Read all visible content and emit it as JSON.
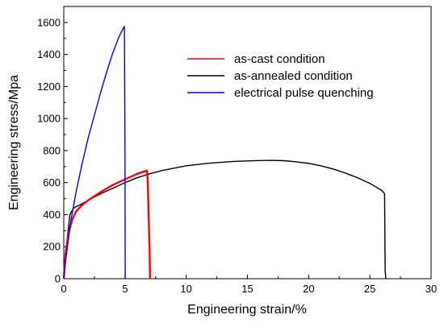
{
  "chart_data": {
    "type": "line",
    "xlabel": "Engineering strain/%",
    "ylabel": "Engineering stress/Mpa",
    "xlim": [
      0,
      30
    ],
    "ylim": [
      0,
      1700
    ],
    "x_ticks": [
      0,
      5,
      10,
      15,
      20,
      25,
      30
    ],
    "y_ticks": [
      0,
      200,
      400,
      600,
      800,
      1000,
      1200,
      1400,
      1600
    ],
    "grid": false,
    "legend_position": "top-right",
    "series": [
      {
        "name": "as-cast condition",
        "color": "#ff0000",
        "points": [
          [
            0,
            0
          ],
          [
            0.15,
            160
          ],
          [
            0.4,
            290
          ],
          [
            0.7,
            370
          ],
          [
            1.0,
            420
          ],
          [
            1.5,
            460
          ],
          [
            2.0,
            490
          ],
          [
            3.0,
            540
          ],
          [
            4.0,
            585
          ],
          [
            5.0,
            620
          ],
          [
            6.0,
            655
          ],
          [
            6.8,
            675
          ],
          [
            6.85,
            620
          ],
          [
            7.0,
            200
          ],
          [
            7.05,
            0
          ]
        ]
      },
      {
        "name": "as-annealed condition",
        "color": "#000000",
        "points": [
          [
            0,
            0
          ],
          [
            0.3,
            260
          ],
          [
            0.5,
            400
          ],
          [
            0.8,
            440
          ],
          [
            1.0,
            450
          ],
          [
            1.3,
            460
          ],
          [
            2,
            490
          ],
          [
            3,
            530
          ],
          [
            4,
            565
          ],
          [
            5,
            600
          ],
          [
            6,
            630
          ],
          [
            7,
            655
          ],
          [
            8,
            675
          ],
          [
            9,
            690
          ],
          [
            10,
            705
          ],
          [
            12,
            722
          ],
          [
            14,
            733
          ],
          [
            16,
            738
          ],
          [
            17,
            739
          ],
          [
            18,
            737
          ],
          [
            19,
            730
          ],
          [
            20,
            720
          ],
          [
            21,
            705
          ],
          [
            22,
            685
          ],
          [
            23,
            660
          ],
          [
            24,
            630
          ],
          [
            25,
            595
          ],
          [
            26,
            550
          ],
          [
            26.2,
            530
          ],
          [
            26.25,
            50
          ],
          [
            26.3,
            0
          ]
        ]
      },
      {
        "name": "electrical pulse quenching",
        "color": "#0000ff",
        "points": [
          [
            0,
            0
          ],
          [
            0.1,
            80
          ],
          [
            0.3,
            200
          ],
          [
            0.6,
            370
          ],
          [
            1.0,
            540
          ],
          [
            1.5,
            720
          ],
          [
            2.0,
            880
          ],
          [
            2.5,
            1020
          ],
          [
            3.0,
            1160
          ],
          [
            3.5,
            1290
          ],
          [
            4.0,
            1410
          ],
          [
            4.5,
            1510
          ],
          [
            4.9,
            1570
          ],
          [
            4.95,
            1575
          ],
          [
            5.0,
            800
          ],
          [
            5.02,
            0
          ]
        ]
      }
    ]
  }
}
